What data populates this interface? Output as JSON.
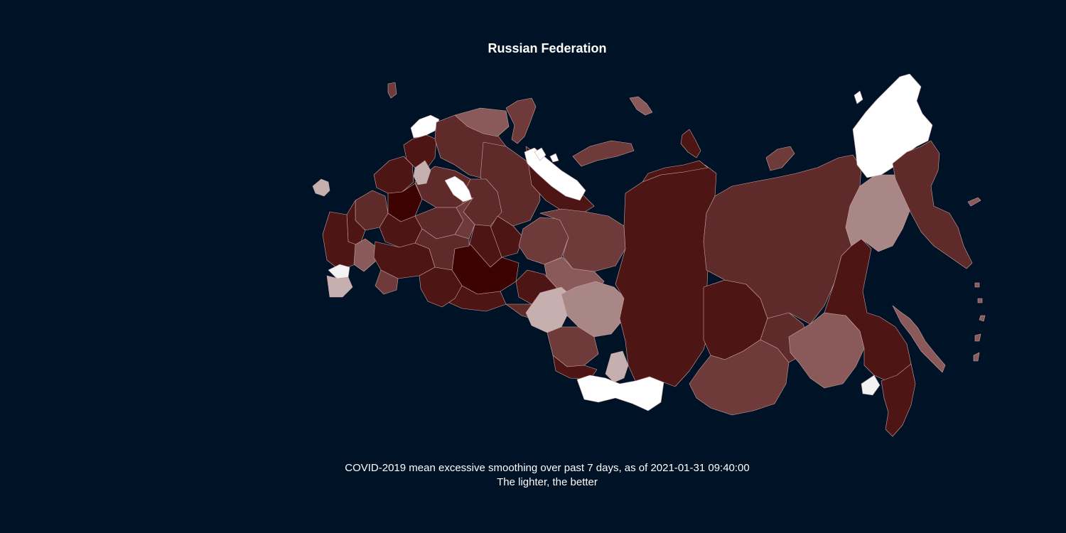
{
  "map": {
    "title": "Russian Federation",
    "caption_line1": "COVID-2019 mean excessive smoothing over past 7 days, as of 2021-01-31 09:40:00",
    "caption_line2": "The lighter, the better"
  },
  "colors": {
    "background": "#001226",
    "darkest": "#3d0303",
    "dark": "#4e1515",
    "mid_dark": "#5f2a2a",
    "mid": "#6e3a3a",
    "muted": "#8a5a5a",
    "light": "#a98787",
    "lighter": "#c6afaf",
    "lightest": "#ffffff"
  }
}
